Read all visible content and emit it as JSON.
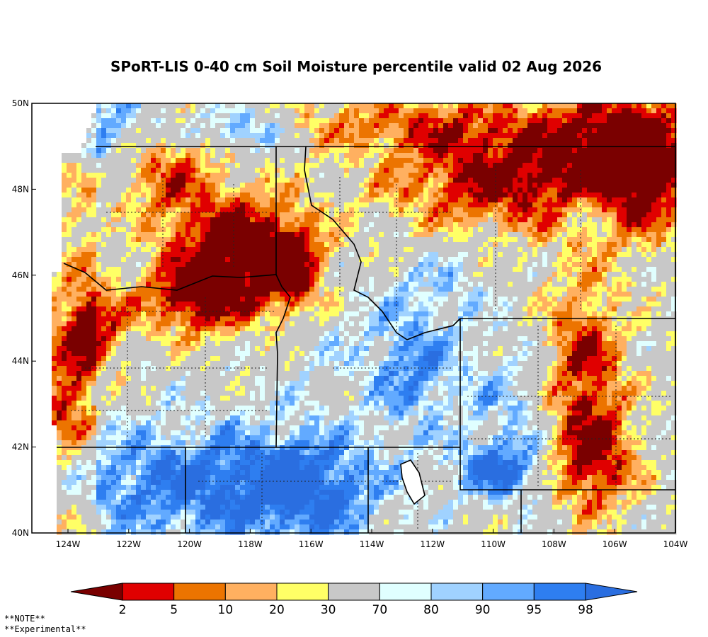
{
  "title": "SPoRT-LIS 0-40 cm Soil Moisture percentile valid 02 Aug 2026",
  "map": {
    "lat_labels": [
      "50N",
      "48N",
      "46N",
      "44N",
      "42N",
      "40N"
    ],
    "lon_labels": [
      "124W",
      "122W",
      "120W",
      "118W",
      "116W",
      "114W",
      "112W",
      "110W",
      "108W",
      "106W",
      "104W"
    ]
  },
  "colorbar": {
    "bounds": [
      2,
      5,
      10,
      20,
      30,
      70,
      80,
      90,
      95,
      98
    ],
    "colors": [
      "#7a0000",
      "#e00000",
      "#ec7400",
      "#ffb060",
      "#ffff66",
      "#c8c8c8",
      "#e0ffff",
      "#a0d2ff",
      "#62aaff",
      "#2e7ef0",
      "#2a6ee0"
    ]
  },
  "notes": [
    "**NOTE**",
    "**Experimental**"
  ]
}
